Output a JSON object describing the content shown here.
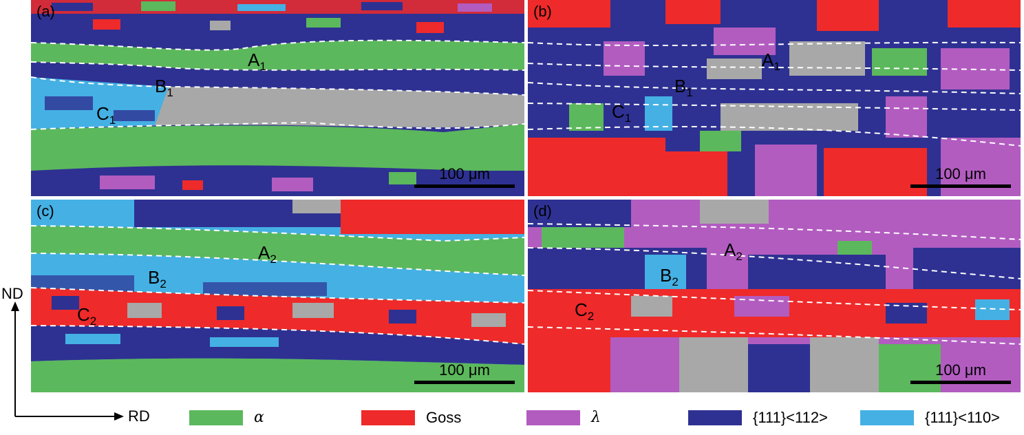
{
  "panels": [
    {
      "id": "a",
      "tag": "(a)",
      "zones": [
        "A",
        "B",
        "C"
      ],
      "subs": [
        "1",
        "1",
        "1"
      ],
      "scale": "100 μm"
    },
    {
      "id": "b",
      "tag": "(b)",
      "zones": [
        "A",
        "B",
        "C"
      ],
      "subs": [
        "1",
        "1",
        "1"
      ],
      "scale": "100 μm"
    },
    {
      "id": "c",
      "tag": "(c)",
      "zones": [
        "A",
        "B",
        "C"
      ],
      "subs": [
        "2",
        "2",
        "2"
      ],
      "scale": "100 μm"
    },
    {
      "id": "d",
      "tag": "(d)",
      "zones": [
        "A",
        "B",
        "C"
      ],
      "subs": [
        "2",
        "2",
        "2"
      ],
      "scale": "100 μm"
    }
  ],
  "axes": {
    "vertical": "ND",
    "horizontal": "RD"
  },
  "legend": [
    {
      "label": "α",
      "color": "#5cb85c"
    },
    {
      "label": "Goss",
      "color": "#ee2a2a"
    },
    {
      "label": "λ",
      "color": "#b25cc0"
    },
    {
      "label": "{111}<112>",
      "color": "#2e3192"
    },
    {
      "label": "{111}<110>",
      "color": "#45b0e3"
    }
  ],
  "colors": {
    "green": "#5cb85c",
    "red": "#ee2a2a",
    "purple": "#b25cc0",
    "navy": "#2e3192",
    "cyan": "#45b0e3",
    "gray": "#a8a8a8",
    "dashed": "#ffffff"
  }
}
